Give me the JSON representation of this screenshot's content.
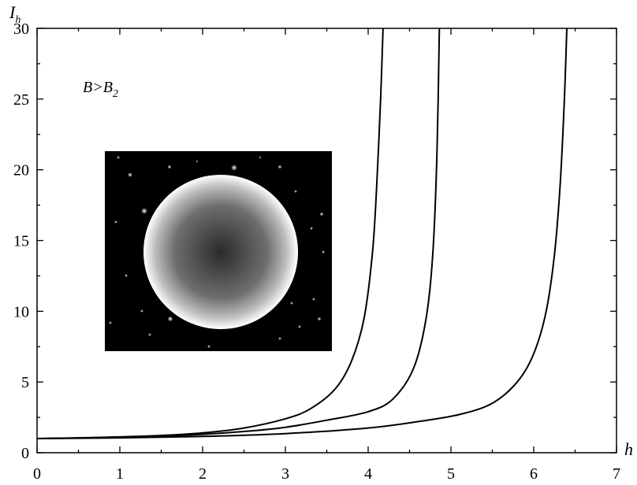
{
  "chart_data": {
    "type": "line",
    "title": "",
    "xlabel": "h",
    "ylabel_main": "I",
    "ylabel_sub": "h",
    "annotation": {
      "main": "B>B",
      "sub": "2"
    },
    "xlim": [
      0,
      7
    ],
    "ylim": [
      0,
      30
    ],
    "xticks": [
      "0",
      "1",
      "2",
      "3",
      "4",
      "5",
      "6",
      "7"
    ],
    "yticks": [
      "0",
      "5",
      "10",
      "15",
      "20",
      "25",
      "30"
    ],
    "grid": false,
    "inset_image": "black-hole-shadow-image",
    "colors": {
      "line": "#000000",
      "inset_background": "#000000",
      "ring": "#ffffff",
      "disk_center": "#2a2a2a"
    },
    "series": [
      {
        "x": [
          0,
          0.5,
          1.0,
          1.5,
          2.0,
          2.5,
          3.0,
          3.3,
          3.6,
          3.8,
          3.95,
          4.05,
          4.1,
          4.15,
          4.18
        ],
        "y": [
          1.0,
          1.05,
          1.12,
          1.22,
          1.4,
          1.75,
          2.4,
          3.1,
          4.5,
          6.5,
          9.5,
          14,
          18.5,
          25,
          30
        ]
      },
      {
        "x": [
          0,
          0.5,
          1.0,
          1.5,
          2.0,
          2.5,
          3.0,
          3.5,
          4.0,
          4.3,
          4.55,
          4.7,
          4.78,
          4.83,
          4.86
        ],
        "y": [
          1.0,
          1.04,
          1.1,
          1.18,
          1.3,
          1.5,
          1.8,
          2.3,
          2.9,
          3.8,
          6.0,
          9.5,
          14,
          21,
          30
        ]
      },
      {
        "x": [
          0,
          1.0,
          2.0,
          3.0,
          4.0,
          4.6,
          5.1,
          5.5,
          5.8,
          6.0,
          6.15,
          6.25,
          6.32,
          6.37,
          6.4
        ],
        "y": [
          1.0,
          1.05,
          1.15,
          1.35,
          1.75,
          2.2,
          2.7,
          3.5,
          5.0,
          7.0,
          10,
          14,
          19,
          25,
          30
        ]
      }
    ]
  }
}
